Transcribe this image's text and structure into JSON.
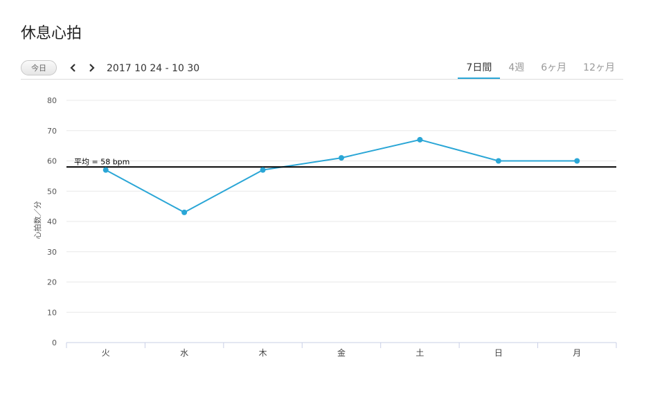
{
  "page": {
    "title": "休息心拍"
  },
  "toolbar": {
    "today_label": "今日",
    "date_range": "2017 10 24 - 10 30",
    "tabs": [
      {
        "label": "7日間",
        "active": true
      },
      {
        "label": "4週",
        "active": false
      },
      {
        "label": "6ヶ月",
        "active": false
      },
      {
        "label": "12ヶ月",
        "active": false
      }
    ]
  },
  "colors": {
    "accent": "#2aa6d6",
    "average_line": "#000000",
    "grid": "#e8e8e8"
  },
  "icons": {
    "prev": "chevron-left-icon",
    "next": "chevron-right-icon"
  },
  "chart_data": {
    "type": "line",
    "title": "",
    "xlabel": "",
    "ylabel": "心拍数／分",
    "categories": [
      "火",
      "水",
      "木",
      "金",
      "土",
      "日",
      "月"
    ],
    "series": [
      {
        "values": [
          57,
          43,
          57,
          61,
          67,
          60,
          60
        ]
      }
    ],
    "ylim": [
      0,
      80
    ],
    "yticks": [
      0,
      10,
      20,
      30,
      40,
      50,
      60,
      70,
      80
    ],
    "grid": true,
    "average": {
      "value": 58,
      "label": "平均 = 58 bpm"
    }
  }
}
